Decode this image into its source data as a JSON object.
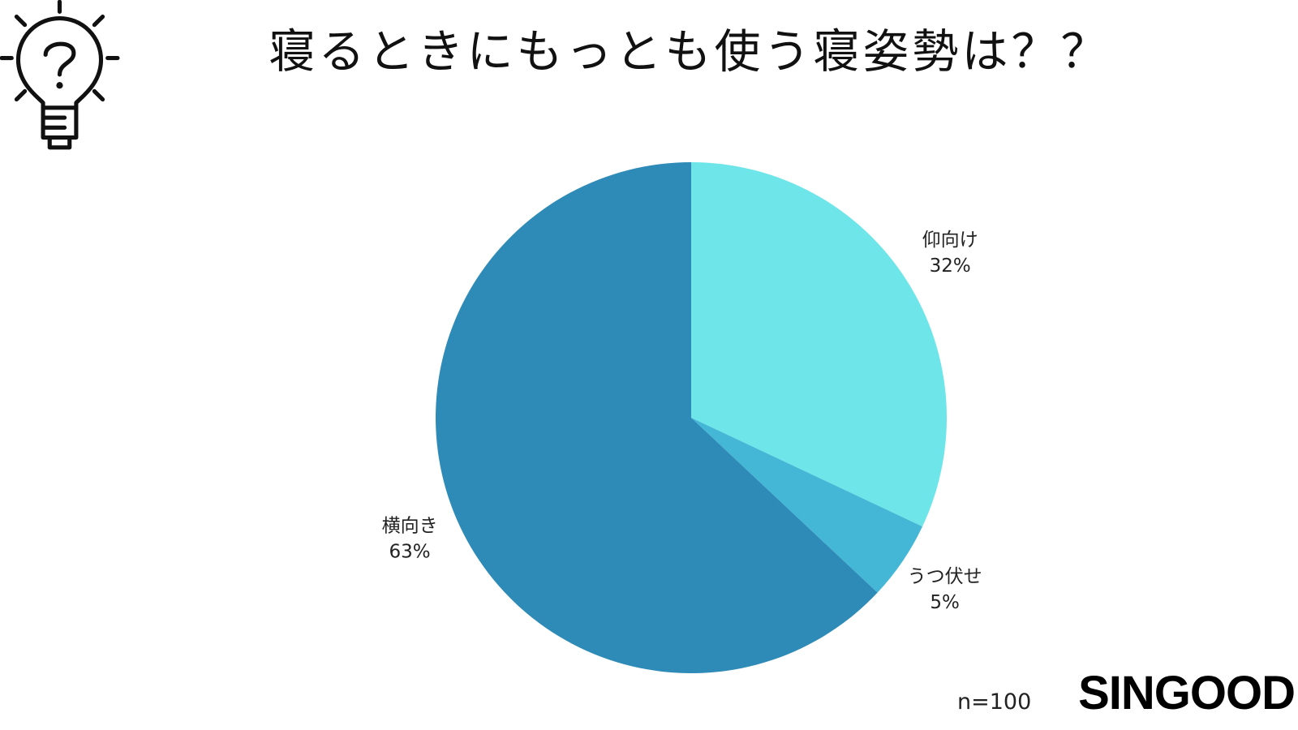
{
  "icon": "lightbulb-question-icon",
  "sample_size": "n=100",
  "brand": "SINGOOD",
  "chart_data": {
    "type": "pie",
    "title": "寝るときにもっとも使う寝姿勢は？？",
    "categories": [
      "仰向け",
      "うつ伏せ",
      "横向き"
    ],
    "values": [
      32,
      5,
      63
    ],
    "data_labels": [
      "32%",
      "5%",
      "63%"
    ],
    "colors": [
      "#6ee5e8",
      "#43b7d5",
      "#2e8bb8"
    ],
    "start": "top",
    "direction": "clockwise"
  }
}
